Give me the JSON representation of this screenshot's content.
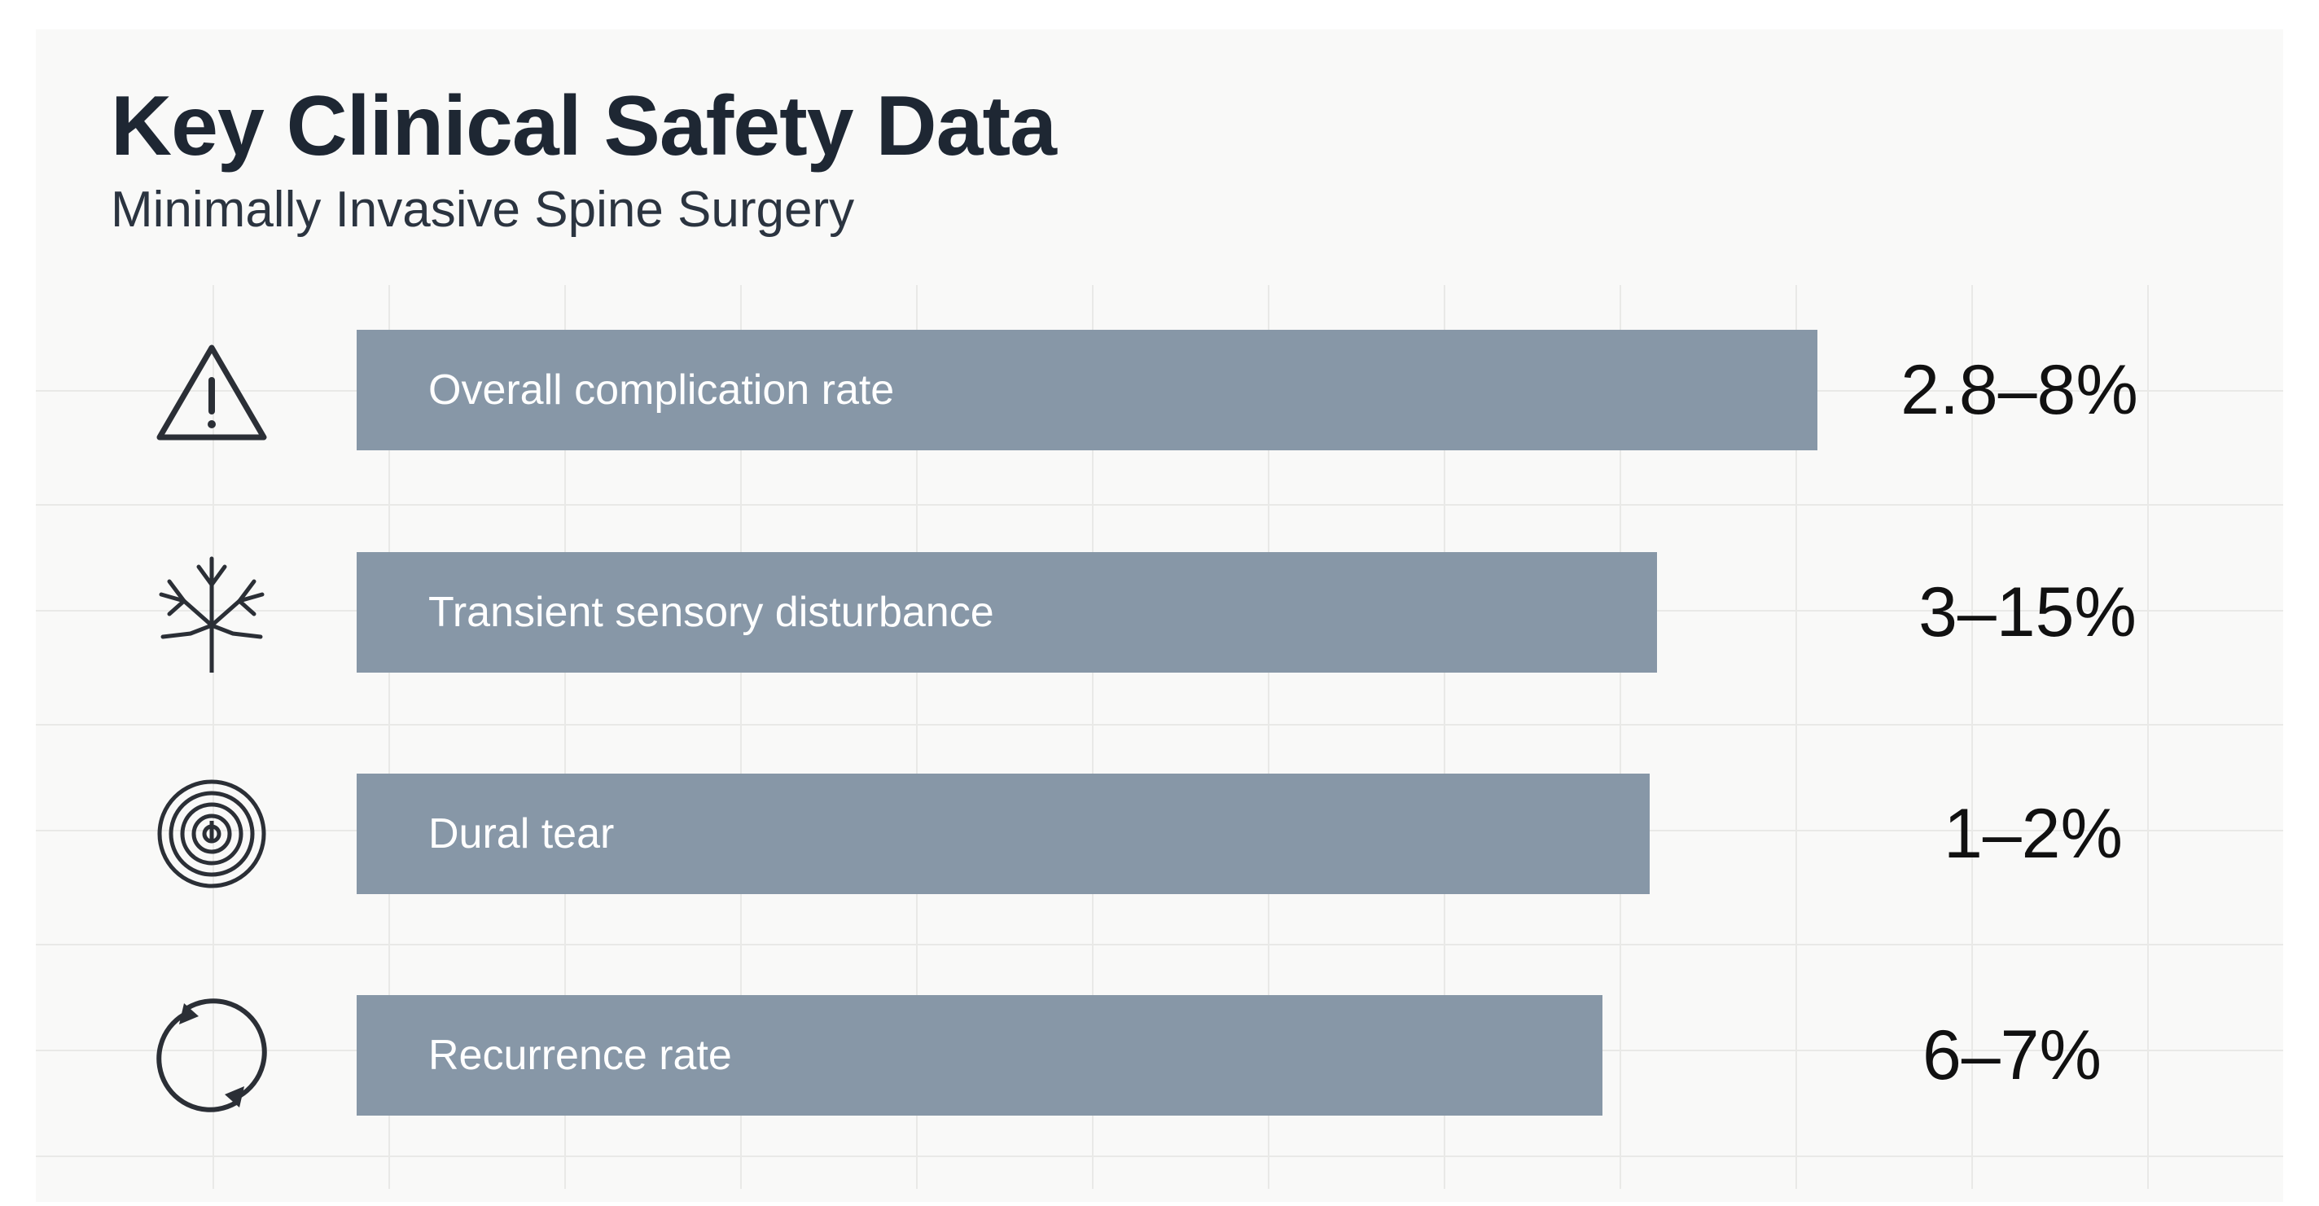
{
  "header": {
    "title": "Key Clinical Safety Data",
    "subtitle": "Minimally Invasive Spine Surgery"
  },
  "colors": {
    "bar": "#8797a7",
    "icon": "#2b2f36",
    "title": "#1e2733"
  },
  "chart_data": {
    "type": "bar",
    "orientation": "horizontal",
    "title": "Key Clinical Safety Data",
    "subtitle": "Minimally Invasive Spine Surgery",
    "grid": true,
    "categories": [
      "Overall complication rate",
      "Transient sensory disturbance",
      "Dural tear",
      "Recurrence rate"
    ],
    "value_labels": [
      "2.8–8%",
      "3–15%",
      "1–2%",
      "6–7%"
    ],
    "bar_length_relative": [
      1.0,
      0.89,
      0.885,
      0.853
    ],
    "icons": [
      "warning-icon",
      "nerve-icon",
      "concentric-circles-icon",
      "recurrence-arrows-icon"
    ]
  }
}
